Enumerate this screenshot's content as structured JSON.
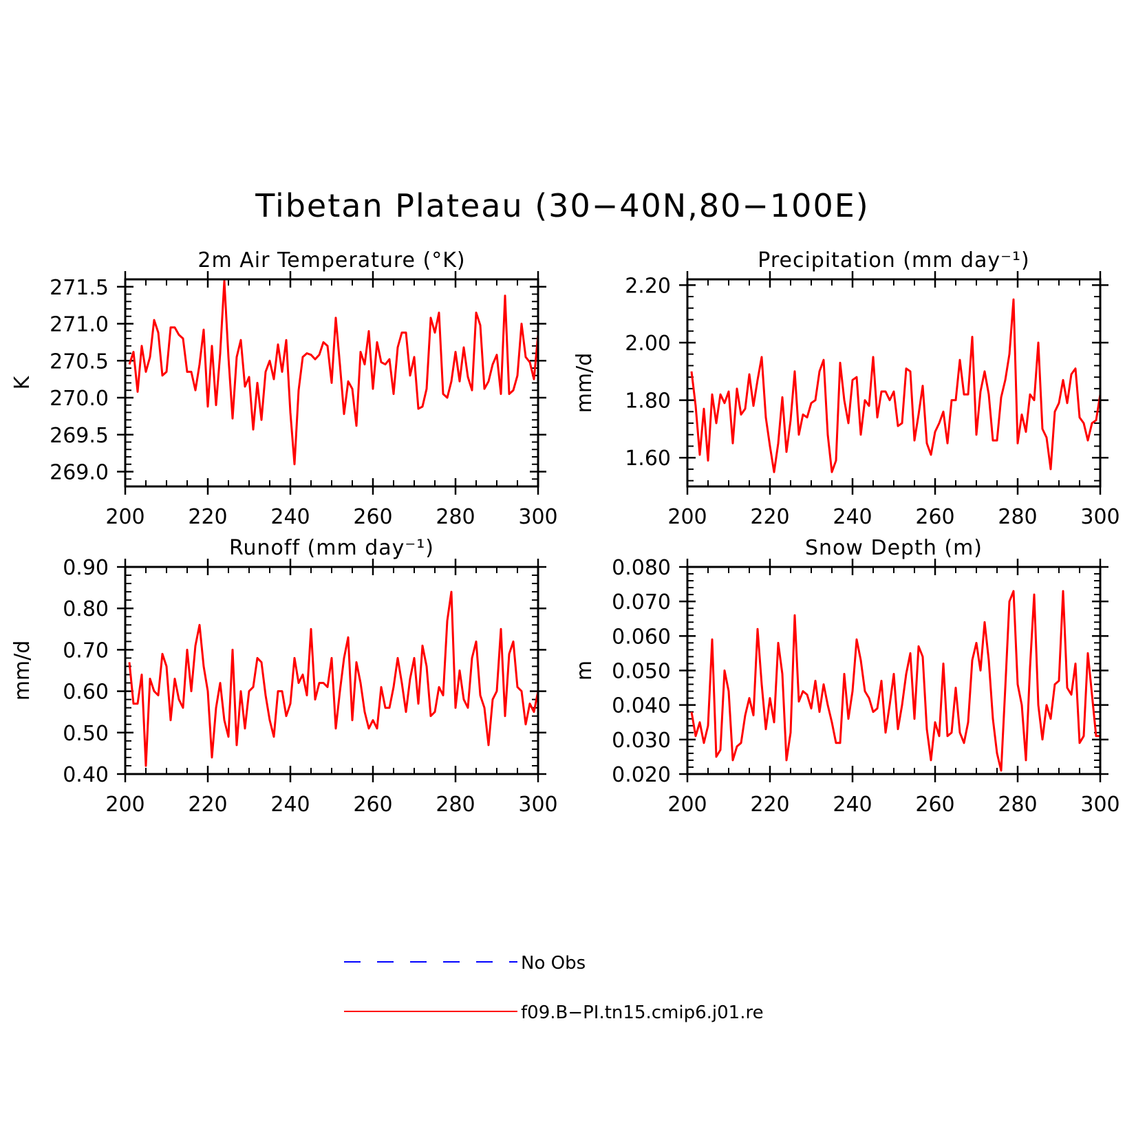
{
  "title": "Tibetan Plateau (30−40N,80−100E)",
  "colors": {
    "model": "#ff0000",
    "obs": "#0000ff",
    "axis": "#000000"
  },
  "legend": {
    "placement": "bottom-center",
    "items": [
      {
        "label": "No Obs",
        "style": "dashed",
        "color": "#0000ff"
      },
      {
        "label": "f09.B−PI.tn15.cmip6.j01.re",
        "style": "solid",
        "color": "#ff0000"
      }
    ]
  },
  "chart_data": [
    {
      "type": "line",
      "title": "2m Air Temperature (°K)",
      "ylabel": "K",
      "xlim": [
        200,
        300
      ],
      "ylim": [
        268.8,
        271.6
      ],
      "xticks": [
        200,
        220,
        240,
        260,
        280,
        300
      ],
      "yticks": [
        "269.0",
        "269.5",
        "270.0",
        "270.5",
        "271.0",
        "271.5"
      ],
      "x_start": 201,
      "series": [
        {
          "name": "f09.B−PI.tn15.cmip6.j01.re",
          "values": [
            270.45,
            270.62,
            270.08,
            270.7,
            270.35,
            270.55,
            271.05,
            270.88,
            270.3,
            270.35,
            270.95,
            270.95,
            270.85,
            270.8,
            270.35,
            270.35,
            270.1,
            270.45,
            270.92,
            269.88,
            270.7,
            269.9,
            270.6,
            271.58,
            270.55,
            269.72,
            270.55,
            270.78,
            270.15,
            270.28,
            269.57,
            270.2,
            269.7,
            270.35,
            270.5,
            270.25,
            270.72,
            270.35,
            270.78,
            269.8,
            269.1,
            270.1,
            270.55,
            270.6,
            270.58,
            270.52,
            270.58,
            270.75,
            270.7,
            270.2,
            271.08,
            270.45,
            269.78,
            270.22,
            270.12,
            269.62,
            270.62,
            270.45,
            270.9,
            270.12,
            270.75,
            270.48,
            270.45,
            270.52,
            270.05,
            270.68,
            270.88,
            270.88,
            270.3,
            270.55,
            269.85,
            269.88,
            270.12,
            271.08,
            270.88,
            271.15,
            270.05,
            270.0,
            270.22,
            270.62,
            270.22,
            270.68,
            270.28,
            270.1,
            271.15,
            270.98,
            270.12,
            270.22,
            270.45,
            270.58,
            270.05,
            271.38,
            270.05,
            270.1,
            270.3,
            271.0,
            270.55,
            270.48,
            270.25,
            270.85
          ]
        }
      ]
    },
    {
      "type": "line",
      "title": "Precipitation (mm day⁻¹)",
      "ylabel": "mm/d",
      "xlim": [
        200,
        300
      ],
      "ylim": [
        1.5,
        2.22
      ],
      "xticks": [
        200,
        220,
        240,
        260,
        280,
        300
      ],
      "yticks": [
        "1.60",
        "1.80",
        "2.00",
        "2.20"
      ],
      "x_start": 201,
      "series": [
        {
          "name": "f09.B−PI.tn15.cmip6.j01.re",
          "values": [
            1.9,
            1.78,
            1.61,
            1.77,
            1.59,
            1.82,
            1.72,
            1.82,
            1.79,
            1.83,
            1.65,
            1.84,
            1.75,
            1.77,
            1.89,
            1.78,
            1.87,
            1.95,
            1.74,
            1.64,
            1.55,
            1.65,
            1.81,
            1.62,
            1.73,
            1.9,
            1.68,
            1.75,
            1.74,
            1.79,
            1.8,
            1.9,
            1.94,
            1.68,
            1.55,
            1.59,
            1.93,
            1.8,
            1.72,
            1.87,
            1.88,
            1.68,
            1.8,
            1.78,
            1.95,
            1.74,
            1.83,
            1.83,
            1.8,
            1.83,
            1.71,
            1.72,
            1.91,
            1.9,
            1.66,
            1.75,
            1.85,
            1.65,
            1.61,
            1.69,
            1.72,
            1.76,
            1.65,
            1.8,
            1.8,
            1.94,
            1.82,
            1.82,
            2.02,
            1.68,
            1.83,
            1.9,
            1.82,
            1.66,
            1.66,
            1.81,
            1.87,
            1.96,
            2.15,
            1.65,
            1.75,
            1.69,
            1.82,
            1.8,
            2.0,
            1.7,
            1.67,
            1.56,
            1.76,
            1.79,
            1.87,
            1.79,
            1.89,
            1.91,
            1.74,
            1.72,
            1.66,
            1.72,
            1.73,
            1.82
          ]
        }
      ]
    },
    {
      "type": "line",
      "title": "Runoff (mm day⁻¹)",
      "ylabel": "mm/d",
      "xlim": [
        200,
        300
      ],
      "ylim": [
        0.4,
        0.9
      ],
      "xticks": [
        200,
        220,
        240,
        260,
        280,
        300
      ],
      "yticks": [
        "0.40",
        "0.50",
        "0.60",
        "0.70",
        "0.80",
        "0.90"
      ],
      "x_start": 201,
      "series": [
        {
          "name": "f09.B−PI.tn15.cmip6.j01.re",
          "values": [
            0.67,
            0.57,
            0.57,
            0.64,
            0.42,
            0.63,
            0.6,
            0.59,
            0.69,
            0.66,
            0.53,
            0.63,
            0.58,
            0.56,
            0.7,
            0.6,
            0.71,
            0.76,
            0.66,
            0.6,
            0.44,
            0.56,
            0.62,
            0.53,
            0.49,
            0.7,
            0.47,
            0.6,
            0.51,
            0.6,
            0.61,
            0.68,
            0.67,
            0.59,
            0.53,
            0.49,
            0.6,
            0.6,
            0.54,
            0.57,
            0.68,
            0.62,
            0.64,
            0.59,
            0.75,
            0.58,
            0.62,
            0.62,
            0.61,
            0.68,
            0.51,
            0.6,
            0.68,
            0.73,
            0.53,
            0.67,
            0.62,
            0.55,
            0.51,
            0.53,
            0.51,
            0.61,
            0.56,
            0.56,
            0.61,
            0.68,
            0.62,
            0.55,
            0.63,
            0.68,
            0.57,
            0.71,
            0.66,
            0.54,
            0.55,
            0.61,
            0.59,
            0.77,
            0.84,
            0.56,
            0.65,
            0.58,
            0.56,
            0.68,
            0.72,
            0.59,
            0.56,
            0.47,
            0.58,
            0.6,
            0.75,
            0.54,
            0.69,
            0.72,
            0.61,
            0.6,
            0.52,
            0.57,
            0.55,
            0.6
          ]
        }
      ]
    },
    {
      "type": "line",
      "title": "Snow Depth (m)",
      "ylabel": "m",
      "xlim": [
        200,
        300
      ],
      "ylim": [
        0.02,
        0.08
      ],
      "xticks": [
        200,
        220,
        240,
        260,
        280,
        300
      ],
      "yticks": [
        "0.020",
        "0.030",
        "0.040",
        "0.050",
        "0.060",
        "0.070",
        "0.080"
      ],
      "x_start": 201,
      "series": [
        {
          "name": "f09.B−PI.tn15.cmip6.j01.re",
          "values": [
            0.038,
            0.031,
            0.035,
            0.029,
            0.034,
            0.059,
            0.025,
            0.027,
            0.05,
            0.044,
            0.024,
            0.028,
            0.029,
            0.037,
            0.042,
            0.037,
            0.062,
            0.046,
            0.033,
            0.042,
            0.035,
            0.058,
            0.049,
            0.024,
            0.032,
            0.066,
            0.041,
            0.044,
            0.043,
            0.039,
            0.047,
            0.038,
            0.046,
            0.04,
            0.035,
            0.029,
            0.029,
            0.049,
            0.036,
            0.044,
            0.059,
            0.053,
            0.044,
            0.042,
            0.038,
            0.039,
            0.047,
            0.032,
            0.04,
            0.049,
            0.033,
            0.04,
            0.049,
            0.055,
            0.036,
            0.057,
            0.054,
            0.033,
            0.024,
            0.035,
            0.031,
            0.052,
            0.031,
            0.032,
            0.045,
            0.032,
            0.029,
            0.035,
            0.053,
            0.058,
            0.05,
            0.064,
            0.053,
            0.036,
            0.026,
            0.021,
            0.045,
            0.07,
            0.073,
            0.046,
            0.04,
            0.024,
            0.051,
            0.072,
            0.04,
            0.03,
            0.04,
            0.036,
            0.046,
            0.047,
            0.073,
            0.045,
            0.043,
            0.052,
            0.029,
            0.031,
            0.055,
            0.043,
            0.031,
            0.031
          ]
        }
      ]
    }
  ]
}
